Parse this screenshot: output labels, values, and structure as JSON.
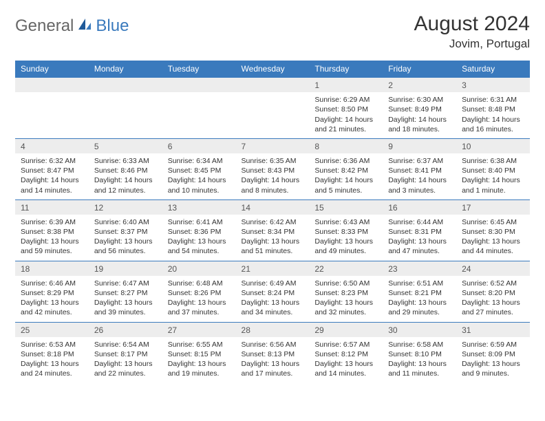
{
  "logo": {
    "part1": "General",
    "part2": "Blue"
  },
  "header": {
    "month_title": "August 2024",
    "location": "Jovim, Portugal"
  },
  "colors": {
    "header_bg": "#3a7abd",
    "header_fg": "#ffffff",
    "daynum_bg": "#ededed",
    "rule": "#3a7abd",
    "text": "#333333"
  },
  "day_headers": [
    "Sunday",
    "Monday",
    "Tuesday",
    "Wednesday",
    "Thursday",
    "Friday",
    "Saturday"
  ],
  "weeks": [
    [
      null,
      null,
      null,
      null,
      {
        "n": "1",
        "sr": "6:29 AM",
        "ss": "8:50 PM",
        "dl": "14 hours and 21 minutes."
      },
      {
        "n": "2",
        "sr": "6:30 AM",
        "ss": "8:49 PM",
        "dl": "14 hours and 18 minutes."
      },
      {
        "n": "3",
        "sr": "6:31 AM",
        "ss": "8:48 PM",
        "dl": "14 hours and 16 minutes."
      }
    ],
    [
      {
        "n": "4",
        "sr": "6:32 AM",
        "ss": "8:47 PM",
        "dl": "14 hours and 14 minutes."
      },
      {
        "n": "5",
        "sr": "6:33 AM",
        "ss": "8:46 PM",
        "dl": "14 hours and 12 minutes."
      },
      {
        "n": "6",
        "sr": "6:34 AM",
        "ss": "8:45 PM",
        "dl": "14 hours and 10 minutes."
      },
      {
        "n": "7",
        "sr": "6:35 AM",
        "ss": "8:43 PM",
        "dl": "14 hours and 8 minutes."
      },
      {
        "n": "8",
        "sr": "6:36 AM",
        "ss": "8:42 PM",
        "dl": "14 hours and 5 minutes."
      },
      {
        "n": "9",
        "sr": "6:37 AM",
        "ss": "8:41 PM",
        "dl": "14 hours and 3 minutes."
      },
      {
        "n": "10",
        "sr": "6:38 AM",
        "ss": "8:40 PM",
        "dl": "14 hours and 1 minute."
      }
    ],
    [
      {
        "n": "11",
        "sr": "6:39 AM",
        "ss": "8:38 PM",
        "dl": "13 hours and 59 minutes."
      },
      {
        "n": "12",
        "sr": "6:40 AM",
        "ss": "8:37 PM",
        "dl": "13 hours and 56 minutes."
      },
      {
        "n": "13",
        "sr": "6:41 AM",
        "ss": "8:36 PM",
        "dl": "13 hours and 54 minutes."
      },
      {
        "n": "14",
        "sr": "6:42 AM",
        "ss": "8:34 PM",
        "dl": "13 hours and 51 minutes."
      },
      {
        "n": "15",
        "sr": "6:43 AM",
        "ss": "8:33 PM",
        "dl": "13 hours and 49 minutes."
      },
      {
        "n": "16",
        "sr": "6:44 AM",
        "ss": "8:31 PM",
        "dl": "13 hours and 47 minutes."
      },
      {
        "n": "17",
        "sr": "6:45 AM",
        "ss": "8:30 PM",
        "dl": "13 hours and 44 minutes."
      }
    ],
    [
      {
        "n": "18",
        "sr": "6:46 AM",
        "ss": "8:29 PM",
        "dl": "13 hours and 42 minutes."
      },
      {
        "n": "19",
        "sr": "6:47 AM",
        "ss": "8:27 PM",
        "dl": "13 hours and 39 minutes."
      },
      {
        "n": "20",
        "sr": "6:48 AM",
        "ss": "8:26 PM",
        "dl": "13 hours and 37 minutes."
      },
      {
        "n": "21",
        "sr": "6:49 AM",
        "ss": "8:24 PM",
        "dl": "13 hours and 34 minutes."
      },
      {
        "n": "22",
        "sr": "6:50 AM",
        "ss": "8:23 PM",
        "dl": "13 hours and 32 minutes."
      },
      {
        "n": "23",
        "sr": "6:51 AM",
        "ss": "8:21 PM",
        "dl": "13 hours and 29 minutes."
      },
      {
        "n": "24",
        "sr": "6:52 AM",
        "ss": "8:20 PM",
        "dl": "13 hours and 27 minutes."
      }
    ],
    [
      {
        "n": "25",
        "sr": "6:53 AM",
        "ss": "8:18 PM",
        "dl": "13 hours and 24 minutes."
      },
      {
        "n": "26",
        "sr": "6:54 AM",
        "ss": "8:17 PM",
        "dl": "13 hours and 22 minutes."
      },
      {
        "n": "27",
        "sr": "6:55 AM",
        "ss": "8:15 PM",
        "dl": "13 hours and 19 minutes."
      },
      {
        "n": "28",
        "sr": "6:56 AM",
        "ss": "8:13 PM",
        "dl": "13 hours and 17 minutes."
      },
      {
        "n": "29",
        "sr": "6:57 AM",
        "ss": "8:12 PM",
        "dl": "13 hours and 14 minutes."
      },
      {
        "n": "30",
        "sr": "6:58 AM",
        "ss": "8:10 PM",
        "dl": "13 hours and 11 minutes."
      },
      {
        "n": "31",
        "sr": "6:59 AM",
        "ss": "8:09 PM",
        "dl": "13 hours and 9 minutes."
      }
    ]
  ],
  "labels": {
    "sunrise": "Sunrise:",
    "sunset": "Sunset:",
    "daylight": "Daylight:"
  }
}
